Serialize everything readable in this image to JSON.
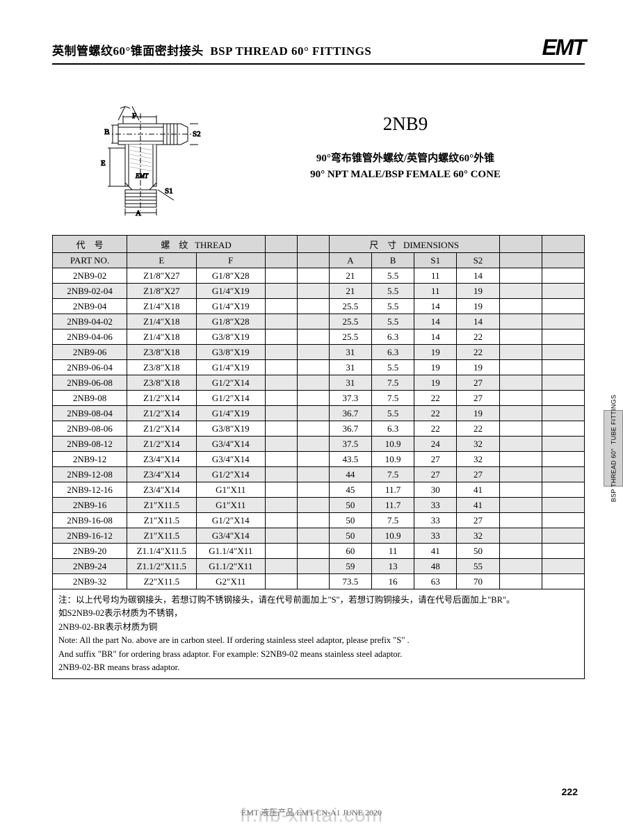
{
  "header": {
    "title_cn": "英制管螺纹60°锥面密封接头",
    "title_en": "BSP THREAD 60° FITTINGS",
    "logo": "EMT"
  },
  "product": {
    "code": "2NB9",
    "desc_cn": "90°弯布锥管外螺纹/英管内螺纹60°外锥",
    "desc_en": "90° NPT MALE/BSP FEMALE 60° CONE"
  },
  "diagram": {
    "angle_label": "60°",
    "dim_F": "F",
    "dim_B": "B",
    "dim_E": "E",
    "dim_A": "A",
    "dim_S1": "S1",
    "dim_S2": "S2",
    "brand": "EMT"
  },
  "table": {
    "hdr1": {
      "partno_cn": "代　号",
      "thread_cn": "螺　纹",
      "thread_en": "THREAD",
      "dim_cn": "尺　寸",
      "dim_en": "DIMENSIONS"
    },
    "hdr2": {
      "partno_en": "PART  NO.",
      "E": "E",
      "F": "F",
      "A": "A",
      "B": "B",
      "S1": "S1",
      "S2": "S2"
    },
    "col_widths": [
      "14%",
      "13%",
      "13%",
      "6%",
      "6%",
      "8%",
      "8%",
      "8%",
      "8%",
      "8%",
      "8%"
    ],
    "rows": [
      {
        "pn": "2NB9-02",
        "e": "Z1/8″X27",
        "f": "G1/8″X28",
        "a": "21",
        "b": "5.5",
        "s1": "11",
        "s2": "14"
      },
      {
        "pn": "2NB9-02-04",
        "e": "Z1/8″X27",
        "f": "G1/4″X19",
        "a": "21",
        "b": "5.5",
        "s1": "11",
        "s2": "19"
      },
      {
        "pn": "2NB9-04",
        "e": "Z1/4″X18",
        "f": "G1/4″X19",
        "a": "25.5",
        "b": "5.5",
        "s1": "14",
        "s2": "19"
      },
      {
        "pn": "2NB9-04-02",
        "e": "Z1/4″X18",
        "f": "G1/8″X28",
        "a": "25.5",
        "b": "5.5",
        "s1": "14",
        "s2": "14"
      },
      {
        "pn": "2NB9-04-06",
        "e": "Z1/4″X18",
        "f": "G3/8″X19",
        "a": "25.5",
        "b": "6.3",
        "s1": "14",
        "s2": "22"
      },
      {
        "pn": "2NB9-06",
        "e": "Z3/8″X18",
        "f": "G3/8″X19",
        "a": "31",
        "b": "6.3",
        "s1": "19",
        "s2": "22"
      },
      {
        "pn": "2NB9-06-04",
        "e": "Z3/8″X18",
        "f": "G1/4″X19",
        "a": "31",
        "b": "5.5",
        "s1": "19",
        "s2": "19"
      },
      {
        "pn": "2NB9-06-08",
        "e": "Z3/8″X18",
        "f": "G1/2″X14",
        "a": "31",
        "b": "7.5",
        "s1": "19",
        "s2": "27"
      },
      {
        "pn": "2NB9-08",
        "e": "Z1/2″X14",
        "f": "G1/2″X14",
        "a": "37.3",
        "b": "7.5",
        "s1": "22",
        "s2": "27"
      },
      {
        "pn": "2NB9-08-04",
        "e": "Z1/2″X14",
        "f": "G1/4″X19",
        "a": "36.7",
        "b": "5.5",
        "s1": "22",
        "s2": "19"
      },
      {
        "pn": "2NB9-08-06",
        "e": "Z1/2″X14",
        "f": "G3/8″X19",
        "a": "36.7",
        "b": "6.3",
        "s1": "22",
        "s2": "22"
      },
      {
        "pn": "2NB9-08-12",
        "e": "Z1/2″X14",
        "f": "G3/4″X14",
        "a": "37.5",
        "b": "10.9",
        "s1": "24",
        "s2": "32"
      },
      {
        "pn": "2NB9-12",
        "e": "Z3/4″X14",
        "f": "G3/4″X14",
        "a": "43.5",
        "b": "10.9",
        "s1": "27",
        "s2": "32"
      },
      {
        "pn": "2NB9-12-08",
        "e": "Z3/4″X14",
        "f": "G1/2″X14",
        "a": "44",
        "b": "7.5",
        "s1": "27",
        "s2": "27"
      },
      {
        "pn": "2NB9-12-16",
        "e": "Z3/4″X14",
        "f": "G1″X11",
        "a": "45",
        "b": "11.7",
        "s1": "30",
        "s2": "41"
      },
      {
        "pn": "2NB9-16",
        "e": "Z1″X11.5",
        "f": "G1″X11",
        "a": "50",
        "b": "11.7",
        "s1": "33",
        "s2": "41"
      },
      {
        "pn": "2NB9-16-08",
        "e": "Z1″X11.5",
        "f": "G1/2″X14",
        "a": "50",
        "b": "7.5",
        "s1": "33",
        "s2": "27"
      },
      {
        "pn": "2NB9-16-12",
        "e": "Z1″X11.5",
        "f": "G3/4″X14",
        "a": "50",
        "b": "10.9",
        "s1": "33",
        "s2": "32"
      },
      {
        "pn": "2NB9-20",
        "e": "Z1.1/4″X11.5",
        "f": "G1.1/4″X11",
        "a": "60",
        "b": "11",
        "s1": "41",
        "s2": "50"
      },
      {
        "pn": "2NB9-24",
        "e": "Z1.1/2″X11.5",
        "f": "G1.1/2″X11",
        "a": "59",
        "b": "13",
        "s1": "48",
        "s2": "55"
      },
      {
        "pn": "2NB9-32",
        "e": "Z2″X11.5",
        "f": "G2″X11",
        "a": "73.5",
        "b": "16",
        "s1": "63",
        "s2": "70"
      }
    ],
    "note_cn_1": "注：以上代号均为碳钢接头，若想订购不锈钢接头，请在代号前面加上\"S\"，若想订购铜接头，请在代号后面加上\"BR\"。",
    "note_cn_2": "如S2NB9-02表示材质为不锈钢，",
    "note_cn_3": "2NB9-02-BR表示材质为铜",
    "note_en_1": "Note: All the part No. above are in carbon steel. If ordering stainless steel adaptor, please prefix \"S\" .",
    "note_en_2": "And suffix \"BR\" for ordering brass adaptor. For example: S2NB9-02  means stainless steel adaptor.",
    "note_en_3": "2NB9-02-BR means brass adaptor."
  },
  "side_tab": "BSP THREAD 60°  TUBE FITTINGS",
  "page_number": "222",
  "watermark": "fr.nb-xintai.com",
  "footer": "EMT 液压产品 EMT-CN-A1 JUNE 2020"
}
